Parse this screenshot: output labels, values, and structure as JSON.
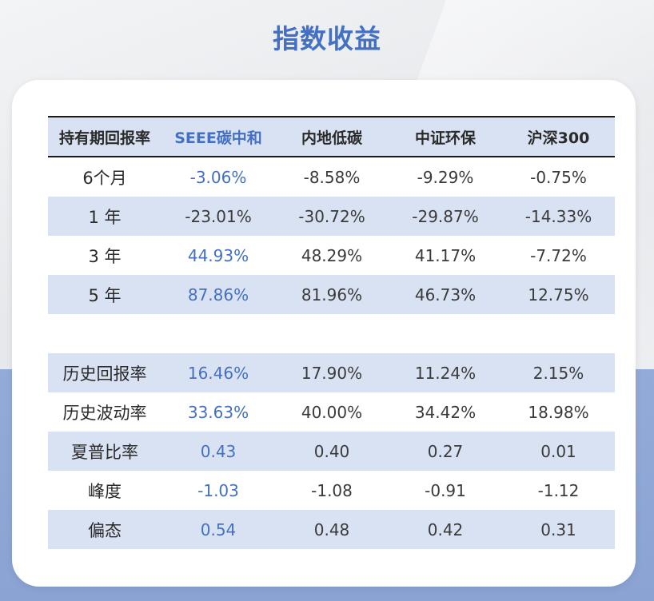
{
  "title": "指数收益",
  "colors": {
    "accent": "#4470c3",
    "row_shade": "#d9e2f3",
    "bottom_band": "#8fa8d6"
  },
  "table": {
    "headers": [
      "持有期回报率",
      "SEEE碳中和",
      "内地低碳",
      "中证环保",
      "沪深300"
    ],
    "period_rows": [
      {
        "label": "6个月",
        "values": [
          "-3.06%",
          "-8.58%",
          "-9.29%",
          "-0.75%"
        ]
      },
      {
        "label": "1 年",
        "values": [
          "-23.01%",
          "-30.72%",
          "-29.87%",
          "-14.33%"
        ]
      },
      {
        "label": "3 年",
        "values": [
          "44.93%",
          "48.29%",
          "41.17%",
          "-7.72%"
        ]
      },
      {
        "label": "5 年",
        "values": [
          "87.86%",
          "81.96%",
          "46.73%",
          "12.75%"
        ]
      }
    ],
    "stat_rows": [
      {
        "label": "历史回报率",
        "values": [
          "16.46%",
          "17.90%",
          "11.24%",
          "2.15%"
        ]
      },
      {
        "label": "历史波动率",
        "values": [
          "33.63%",
          "40.00%",
          "34.42%",
          "18.98%"
        ]
      },
      {
        "label": "夏普比率",
        "values": [
          "0.43",
          "0.40",
          "0.27",
          "0.01"
        ]
      },
      {
        "label": "峰度",
        "values": [
          "-1.03",
          "-1.08",
          "-0.91",
          "-1.12"
        ]
      },
      {
        "label": "偏态",
        "values": [
          "0.54",
          "0.48",
          "0.42",
          "0.31"
        ]
      }
    ]
  }
}
